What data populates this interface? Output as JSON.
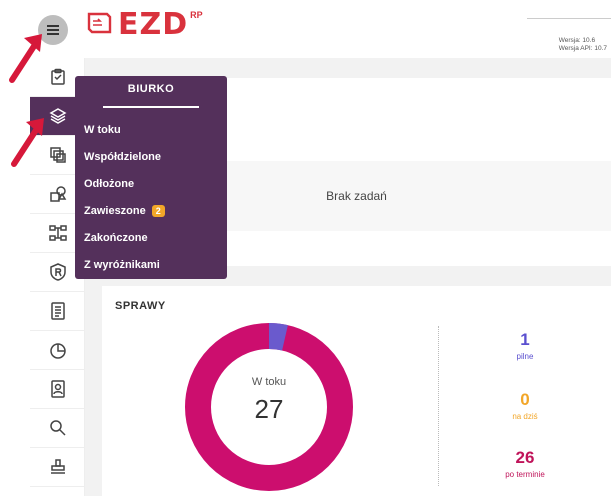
{
  "header": {
    "logo_text": "EZD",
    "logo_sup": "RP",
    "version": "Wersja: 10.6",
    "api_version": "Wersja API: 10.7"
  },
  "sidebar": {
    "items": [
      {
        "icon": "clipboard-icon"
      },
      {
        "icon": "layers-icon",
        "active": true
      },
      {
        "icon": "documents-icon"
      },
      {
        "icon": "shapes-icon"
      },
      {
        "icon": "workflow-icon"
      },
      {
        "icon": "registered-shield-icon"
      },
      {
        "icon": "notebook-icon"
      },
      {
        "icon": "pie-chart-icon"
      },
      {
        "icon": "contacts-icon"
      },
      {
        "icon": "search-icon"
      },
      {
        "icon": "stamp-icon"
      }
    ]
  },
  "menu": {
    "title": "BIURKO",
    "items": [
      {
        "label": "W toku"
      },
      {
        "label": "Współdzielone"
      },
      {
        "label": "Odłożone"
      },
      {
        "label": "Zawieszone",
        "badge": "2"
      },
      {
        "label": "Zakończone"
      },
      {
        "label": "Z wyróżnikami"
      }
    ]
  },
  "tasks": {
    "empty_text": "Brak zadań"
  },
  "cases": {
    "title": "SPRAWY",
    "center_label": "W toku",
    "center_value": "27",
    "stats": [
      {
        "value": "1",
        "label": "pilne",
        "color": "#5a4fcf"
      },
      {
        "value": "0",
        "label": "na dziś",
        "color": "#f2a628"
      },
      {
        "value": "26",
        "label": "po terminie",
        "color": "#c0145a"
      }
    ]
  },
  "colors": {
    "accent": "#54305b",
    "donut_main": "#cc0e6e",
    "donut_small": "#6a5acd",
    "arrow": "#d6183a",
    "brand": "#d9323d"
  }
}
